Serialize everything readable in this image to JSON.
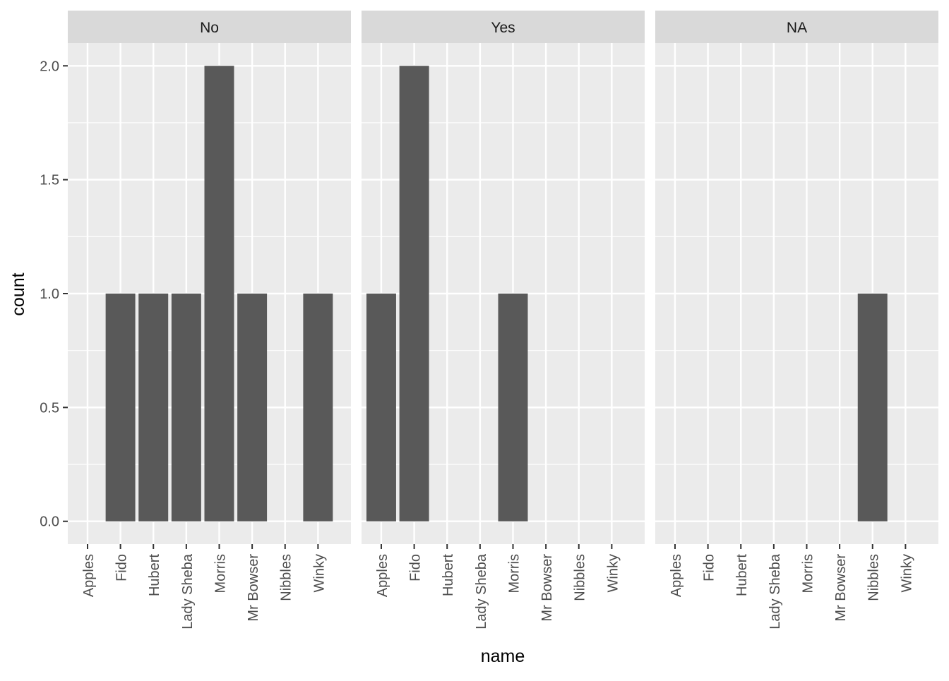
{
  "chart_data": {
    "type": "bar",
    "xlabel": "name",
    "ylabel": "count",
    "ylim": [
      -0.1,
      2.1
    ],
    "yticks": [
      0.0,
      0.5,
      1.0,
      1.5,
      2.0
    ],
    "ytick_labels": [
      "0.0",
      "0.5",
      "1.0",
      "1.5",
      "2.0"
    ],
    "categories": [
      "Apples",
      "Fido",
      "Hubert",
      "Lady Sheba",
      "Morris",
      "Mr Bowser",
      "Nibbles",
      "Winky"
    ],
    "facets": [
      {
        "label": "No",
        "values": [
          0,
          1,
          1,
          1,
          2,
          1,
          0,
          1
        ]
      },
      {
        "label": "Yes",
        "values": [
          1,
          2,
          0,
          0,
          1,
          0,
          0,
          0
        ]
      },
      {
        "label": "NA",
        "values": [
          0,
          0,
          0,
          0,
          0,
          0,
          1,
          0
        ]
      }
    ],
    "grid": true,
    "colors": {
      "panel_bg": "#EBEBEB",
      "strip_bg": "#D9D9D9",
      "grid": "#FFFFFF",
      "bar": "#595959",
      "text": "#4D4D4D",
      "title": "#000000"
    }
  }
}
